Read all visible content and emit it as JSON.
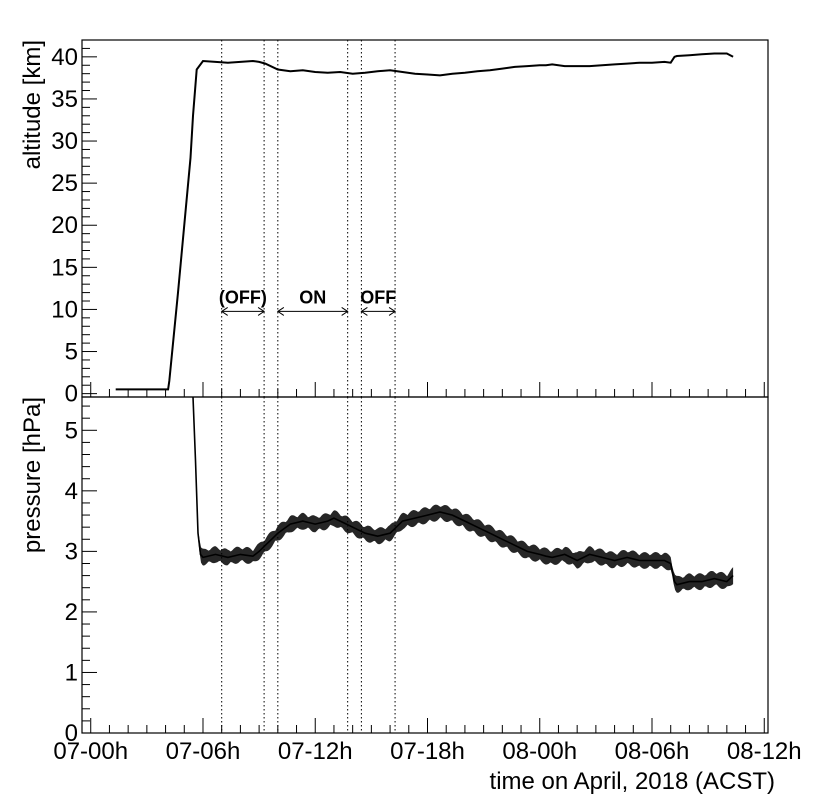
{
  "chart_data": [
    {
      "type": "line",
      "ylabel": "altitude [km]",
      "xlabel": "",
      "xlim": [
        -0.7,
        54.3
      ],
      "ylim": [
        -0.4,
        42.0
      ],
      "yticks": [
        0,
        5,
        10,
        15,
        20,
        25,
        30,
        35,
        40
      ],
      "grid": false,
      "series": [
        {
          "x": [
            2,
            6.2,
            6.3,
            7,
            8,
            8.2,
            8.5,
            9,
            10,
            11,
            12,
            13,
            13.5,
            14,
            15,
            16,
            17,
            18,
            19,
            20,
            21,
            22,
            23,
            24,
            25,
            26,
            27,
            28,
            29,
            30,
            31,
            32,
            33,
            33.5,
            34,
            35,
            36,
            36.5,
            37,
            38,
            40,
            42,
            43,
            44,
            45,
            46,
            46.5,
            46.8,
            47,
            48,
            49,
            50,
            51,
            51.5
          ],
          "y": [
            0.5,
            0.5,
            1.5,
            12,
            28,
            33,
            38.5,
            39.5,
            39.4,
            39.3,
            39.4,
            39.5,
            39.4,
            39.2,
            38.5,
            38.3,
            38.4,
            38.2,
            38.1,
            38.2,
            38.0,
            38.1,
            38.3,
            38.4,
            38.2,
            38.0,
            37.9,
            37.8,
            38.0,
            38.1,
            38.3,
            38.4,
            38.6,
            38.7,
            38.8,
            38.9,
            39.0,
            39.0,
            39.1,
            38.9,
            38.9,
            39.1,
            39.2,
            39.3,
            39.3,
            39.4,
            39.3,
            40.0,
            40.1,
            40.2,
            40.3,
            40.4,
            40.4,
            40.0
          ]
        }
      ],
      "vlines": [
        10.5,
        13.9,
        15.0,
        20.6,
        21.7,
        24.4
      ],
      "annotations": [
        {
          "text": "(OFF)",
          "x_start": 10.5,
          "x_end": 13.9,
          "y": 10
        },
        {
          "text": "ON",
          "x_start": 15.0,
          "x_end": 20.6,
          "y": 10
        },
        {
          "text": "OFF",
          "x_start": 21.7,
          "x_end": 24.4,
          "y": 10
        }
      ]
    },
    {
      "type": "line",
      "ylabel": "pressure [hPa]",
      "xlabel": "time on April, 2018 (ACST)",
      "xlim": [
        -0.7,
        54.3
      ],
      "ylim": [
        0,
        5.55
      ],
      "yticks": [
        0,
        1,
        2,
        3,
        4,
        5
      ],
      "xticks": [
        0,
        6,
        12,
        18,
        24,
        30,
        36
      ],
      "xtick_labels": [
        "07-00h",
        "07-06h",
        "07-12h",
        "07-18h",
        "08-00h",
        "08-06h",
        "08-12h"
      ],
      "grid": false,
      "series": [
        {
          "x": [
            8.2,
            8.4,
            8.6,
            8.8,
            9,
            10,
            11,
            12,
            13,
            13.5,
            14,
            14.5,
            15,
            16,
            17,
            18,
            19,
            19.5,
            20,
            20.5,
            21,
            22,
            23,
            24,
            25,
            26,
            27,
            28,
            29,
            30,
            31,
            32,
            33,
            33.5,
            34,
            35,
            36,
            36.5,
            37,
            38,
            38.5,
            39,
            40,
            41,
            42,
            43,
            44,
            45,
            46,
            46.5,
            46.8,
            47,
            48,
            49,
            50,
            51,
            51.5
          ],
          "y": [
            5.55,
            4.5,
            3.3,
            2.95,
            2.9,
            2.95,
            2.9,
            2.95,
            2.92,
            3.0,
            3.1,
            3.2,
            3.3,
            3.45,
            3.5,
            3.45,
            3.5,
            3.55,
            3.5,
            3.45,
            3.4,
            3.3,
            3.25,
            3.3,
            3.5,
            3.55,
            3.6,
            3.65,
            3.6,
            3.5,
            3.4,
            3.3,
            3.2,
            3.15,
            3.1,
            3.0,
            2.95,
            2.92,
            2.9,
            2.95,
            2.9,
            2.85,
            2.95,
            2.9,
            2.85,
            2.9,
            2.85,
            2.85,
            2.85,
            2.8,
            2.5,
            2.45,
            2.5,
            2.5,
            2.55,
            2.5,
            2.6
          ]
        }
      ],
      "vlines": [
        10.5,
        13.9,
        15.0,
        20.6,
        21.7,
        24.4
      ]
    }
  ]
}
